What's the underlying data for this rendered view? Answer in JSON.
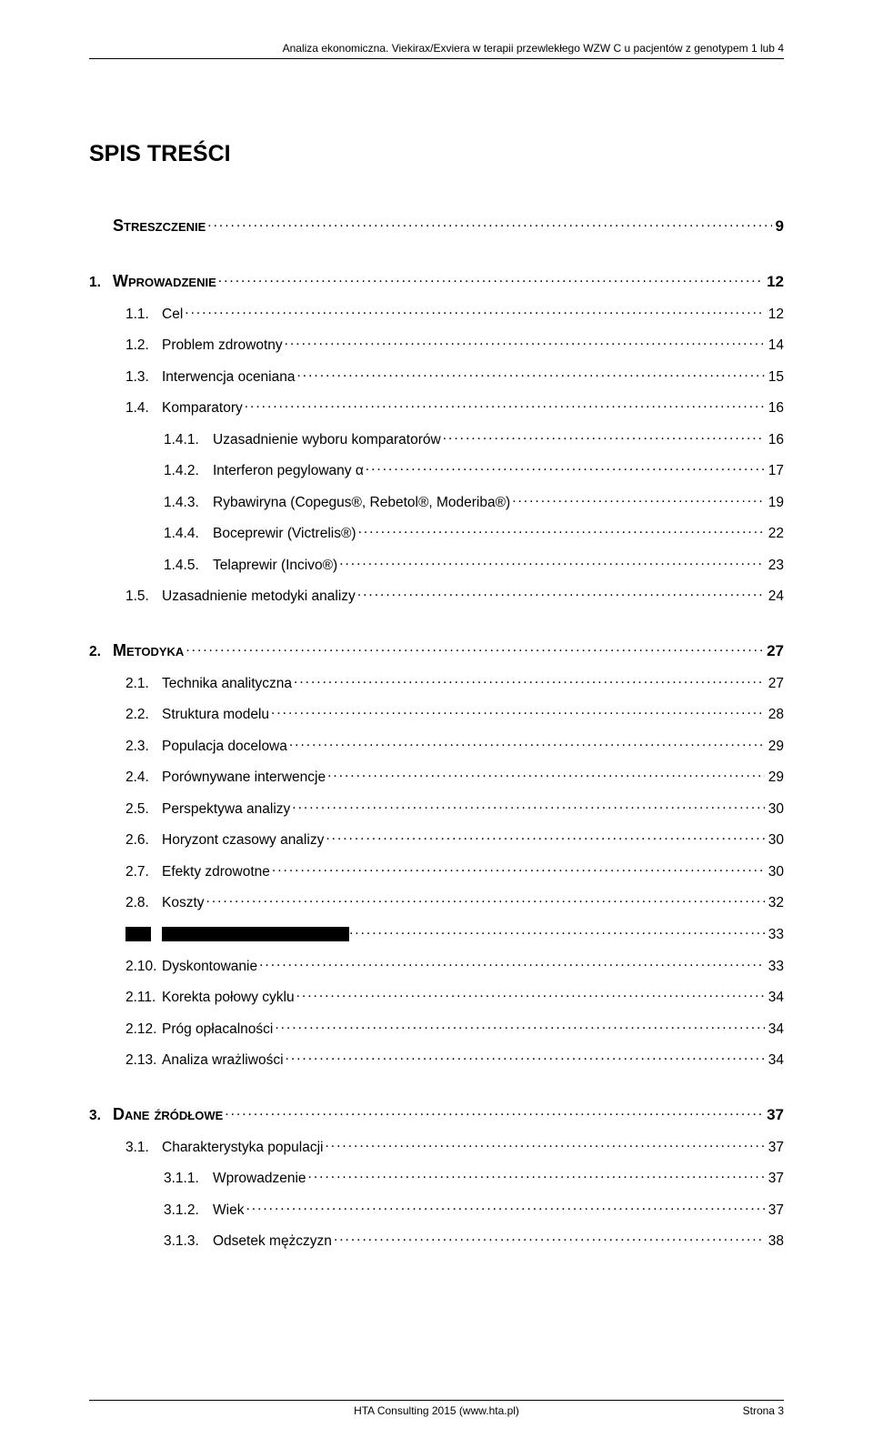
{
  "header": {
    "running": "Analiza ekonomiczna. Viekirax/Exviera w terapii przewlekłego WZW C u pacjentów z genotypem 1 lub 4"
  },
  "title": "SPIS TREŚCI",
  "toc": [
    {
      "level": 1,
      "num": "",
      "text": "Streszczenie",
      "page": "9"
    },
    {
      "level": 1,
      "num": "1.",
      "text": "Wprowadzenie",
      "page": "12"
    },
    {
      "level": 2,
      "num": "1.1.",
      "text": "Cel",
      "page": "12"
    },
    {
      "level": 2,
      "num": "1.2.",
      "text": "Problem zdrowotny",
      "page": "14"
    },
    {
      "level": 2,
      "num": "1.3.",
      "text": "Interwencja oceniana",
      "page": "15"
    },
    {
      "level": 2,
      "num": "1.4.",
      "text": "Komparatory",
      "page": "16"
    },
    {
      "level": 3,
      "num": "1.4.1.",
      "text": "Uzasadnienie wyboru komparatorów",
      "page": "16"
    },
    {
      "level": 3,
      "num": "1.4.2.",
      "text": "Interferon pegylowany α",
      "page": "17"
    },
    {
      "level": 3,
      "num": "1.4.3.",
      "text": "Rybawiryna (Copegus®, Rebetol®, Moderiba®)",
      "page": "19"
    },
    {
      "level": 3,
      "num": "1.4.4.",
      "text": "Boceprewir (Victrelis®)",
      "page": "22"
    },
    {
      "level": 3,
      "num": "1.4.5.",
      "text": "Telaprewir (Incivo®)",
      "page": "23"
    },
    {
      "level": 2,
      "num": "1.5.",
      "text": "Uzasadnienie metodyki analizy",
      "page": "24"
    },
    {
      "level": 1,
      "num": "2.",
      "text": "Metodyka",
      "page": "27"
    },
    {
      "level": 2,
      "num": "2.1.",
      "text": "Technika analityczna",
      "page": "27"
    },
    {
      "level": 2,
      "num": "2.2.",
      "text": "Struktura modelu",
      "page": "28"
    },
    {
      "level": 2,
      "num": "2.3.",
      "text": "Populacja docelowa",
      "page": "29"
    },
    {
      "level": 2,
      "num": "2.4.",
      "text": "Porównywane interwencje",
      "page": "29"
    },
    {
      "level": 2,
      "num": "2.5.",
      "text": "Perspektywa analizy",
      "page": "30"
    },
    {
      "level": 2,
      "num": "2.6.",
      "text": "Horyzont czasowy analizy",
      "page": "30"
    },
    {
      "level": 2,
      "num": "2.7.",
      "text": "Efekty zdrowotne",
      "page": "30"
    },
    {
      "level": 2,
      "num": "2.8.",
      "text": "Koszty",
      "page": "32"
    },
    {
      "level": -1,
      "redacted": true,
      "page": "33"
    },
    {
      "level": 2,
      "num": "2.10.",
      "text": "Dyskontowanie",
      "page": "33"
    },
    {
      "level": 2,
      "num": "2.11.",
      "text": "Korekta połowy cyklu",
      "page": "34"
    },
    {
      "level": 2,
      "num": "2.12.",
      "text": "Próg opłacalności",
      "page": "34"
    },
    {
      "level": 2,
      "num": "2.13.",
      "text": "Analiza wrażliwości",
      "page": "34"
    },
    {
      "level": 1,
      "num": "3.",
      "text": "Dane źródłowe",
      "page": "37"
    },
    {
      "level": 2,
      "num": "3.1.",
      "text": "Charakterystyka populacji",
      "page": "37"
    },
    {
      "level": 3,
      "num": "3.1.1.",
      "text": "Wprowadzenie",
      "page": "37"
    },
    {
      "level": 3,
      "num": "3.1.2.",
      "text": "Wiek",
      "page": "37"
    },
    {
      "level": 3,
      "num": "3.1.3.",
      "text": "Odsetek mężczyzn",
      "page": "38"
    }
  ],
  "footer": {
    "center": "HTA Consulting 2015 (www.hta.pl)",
    "right": "Strona 3"
  }
}
